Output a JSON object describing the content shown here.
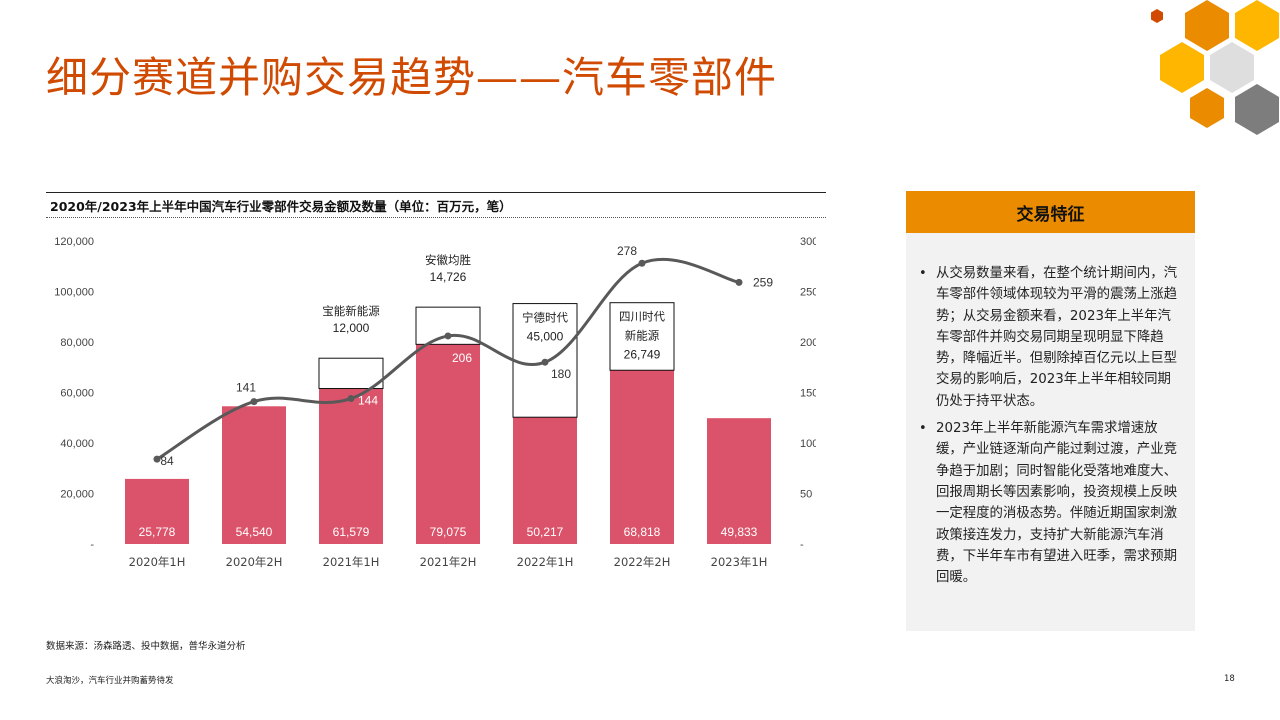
{
  "page": {
    "title": "细分赛道并购交易趋势——汽车零部件",
    "source": "数据来源：汤森路透、投中数据，普华永道分析",
    "footer_left": "大浪淘沙，汽车行业并购蓄势待发",
    "page_number": "18"
  },
  "colors": {
    "accent": "#d04a02",
    "bar": "#db536a",
    "line": "#595959",
    "panel_header": "#eb8c00",
    "hex": [
      "#d04a02",
      "#eb8c00",
      "#ffb600",
      "#dedede",
      "#7d7d7d"
    ]
  },
  "chart_data": {
    "type": "bar",
    "title": "2020年/2023年上半年中国汽车行业零部件交易金额及数量（单位：百万元，笔）",
    "categories": [
      "2020年1H",
      "2020年2H",
      "2021年1H",
      "2021年2H",
      "2022年1H",
      "2022年2H",
      "2023年1H"
    ],
    "series": [
      {
        "type": "bar",
        "axis": "left",
        "values": [
          25778,
          54540,
          61579,
          79075,
          50217,
          68818,
          49833
        ],
        "labels": [
          "25,778",
          "54,540",
          "61,579",
          "79,075",
          "50,217",
          "68,818",
          "49,833"
        ]
      },
      {
        "type": "line",
        "axis": "right",
        "values": [
          84,
          141,
          144,
          206,
          180,
          278,
          259
        ],
        "labels": [
          "84",
          "141",
          "144",
          "206",
          "180",
          "278",
          "259"
        ]
      }
    ],
    "annotations": [
      {
        "category": "2021年1H",
        "name": "宝能新能源",
        "value": 12000,
        "value_label": "12,000"
      },
      {
        "category": "2021年2H",
        "name": "安徽均胜",
        "value": 14726,
        "value_label": "14,726"
      },
      {
        "category": "2022年1H",
        "name": "宁德时代",
        "value": 45000,
        "value_label": "45,000"
      },
      {
        "category": "2022年2H",
        "name": "四川时代\n新能源",
        "value": 26749,
        "value_label": "26,749"
      }
    ],
    "y_left": {
      "ylim": [
        0,
        120000
      ],
      "ticks": [
        0,
        20000,
        40000,
        60000,
        80000,
        100000,
        120000
      ],
      "tick_labels": [
        "-",
        "20,000",
        "40,000",
        "60,000",
        "80,000",
        "100,000",
        "120,000"
      ]
    },
    "y_right": {
      "ylim": [
        0,
        300
      ],
      "ticks": [
        0,
        50,
        100,
        150,
        200,
        250,
        300
      ],
      "tick_labels": [
        "-",
        "50",
        "100",
        "150",
        "200",
        "250",
        "300"
      ]
    },
    "grid": false,
    "legend": "none"
  },
  "panel": {
    "header": "交易特征",
    "bullets": [
      "从交易数量来看，在整个统计期间内，汽车零部件领域体现较为平滑的震荡上涨趋势；从交易金额来看，2023年上半年汽车零部件并购交易同期呈现明显下降趋势，降幅近半。但剔除掉百亿元以上巨型交易的影响后，2023年上半年相较同期仍处于持平状态。",
      "2023年上半年新能源汽车需求增速放缓，产业链逐渐向产能过剩过渡，产业竞争趋于加剧；同时智能化受落地难度大、回报周期长等因素影响，投资规模上反映一定程度的消极态势。伴随近期国家刺激政策接连发力，支持扩大新能源汽车消费，下半年车市有望进入旺季，需求预期回暖。"
    ]
  }
}
